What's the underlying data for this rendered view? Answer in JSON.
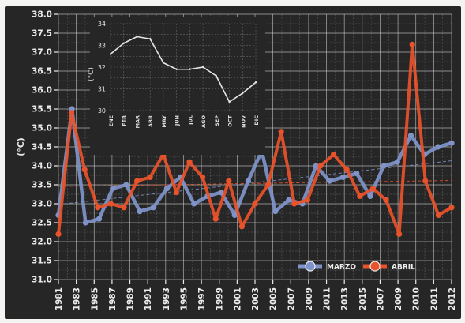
{
  "chart_data": [
    {
      "type": "line",
      "ylabel": "(°C)",
      "ylim": [
        31.0,
        38.0
      ],
      "y_ticks": [
        "31.0",
        "31.5",
        "32.0",
        "32.5",
        "33.0",
        "33.5",
        "34.0",
        "34.5",
        "35.0",
        "35.5",
        "36.0",
        "36.5",
        "37.0",
        "37.5",
        "38.0"
      ],
      "x_ticks": [
        "1981",
        "1983",
        "1985",
        "1987",
        "1989",
        "1991",
        "1993",
        "1995",
        "1997",
        "1999",
        "2001",
        "2003",
        "2005",
        "2007",
        "2009",
        "2011",
        "2013",
        "2015",
        "2007",
        "2009",
        "2010",
        "2011",
        "2012"
      ],
      "grid": true,
      "background": "#262626",
      "legend_position": "bottom-right",
      "series": [
        {
          "name": "MARZO",
          "color": "#7f93c9",
          "values": [
            32.7,
            35.5,
            32.5,
            32.6,
            33.4,
            33.5,
            32.8,
            32.9,
            33.4,
            33.7,
            33.0,
            33.2,
            33.3,
            32.7,
            33.6,
            34.4,
            32.8,
            33.1,
            33.0,
            34.0,
            33.6,
            33.7,
            33.8,
            33.2,
            34.0,
            34.1,
            34.8,
            34.3,
            34.5,
            34.6
          ]
        },
        {
          "name": "ABRIL",
          "color": "#e8532b",
          "values": [
            32.2,
            35.4,
            33.9,
            32.9,
            33.0,
            32.9,
            33.6,
            33.7,
            34.3,
            33.3,
            34.1,
            33.7,
            32.6,
            33.6,
            32.4,
            33.0,
            33.5,
            34.9,
            33.0,
            33.1,
            34.0,
            34.3,
            33.9,
            33.2,
            33.4,
            33.1,
            32.2,
            37.2,
            33.6,
            32.7,
            32.9
          ]
        }
      ]
    },
    {
      "type": "line",
      "ylabel": "(°C)",
      "ylim": [
        30,
        34
      ],
      "y_ticks": [
        "30",
        "31",
        "32",
        "33",
        "34"
      ],
      "x_ticks": [
        "ENE",
        "FEB",
        "MAR",
        "ABR",
        "MAY",
        "JUN",
        "JUL",
        "AGO",
        "SEP",
        "OCT",
        "NOV",
        "DIC"
      ],
      "series": [
        {
          "color": "#e6e6e6",
          "values": [
            32.6,
            33.1,
            33.4,
            33.3,
            32.2,
            31.9,
            31.9,
            32.0,
            31.6,
            30.4,
            30.8,
            31.3
          ]
        }
      ]
    }
  ]
}
